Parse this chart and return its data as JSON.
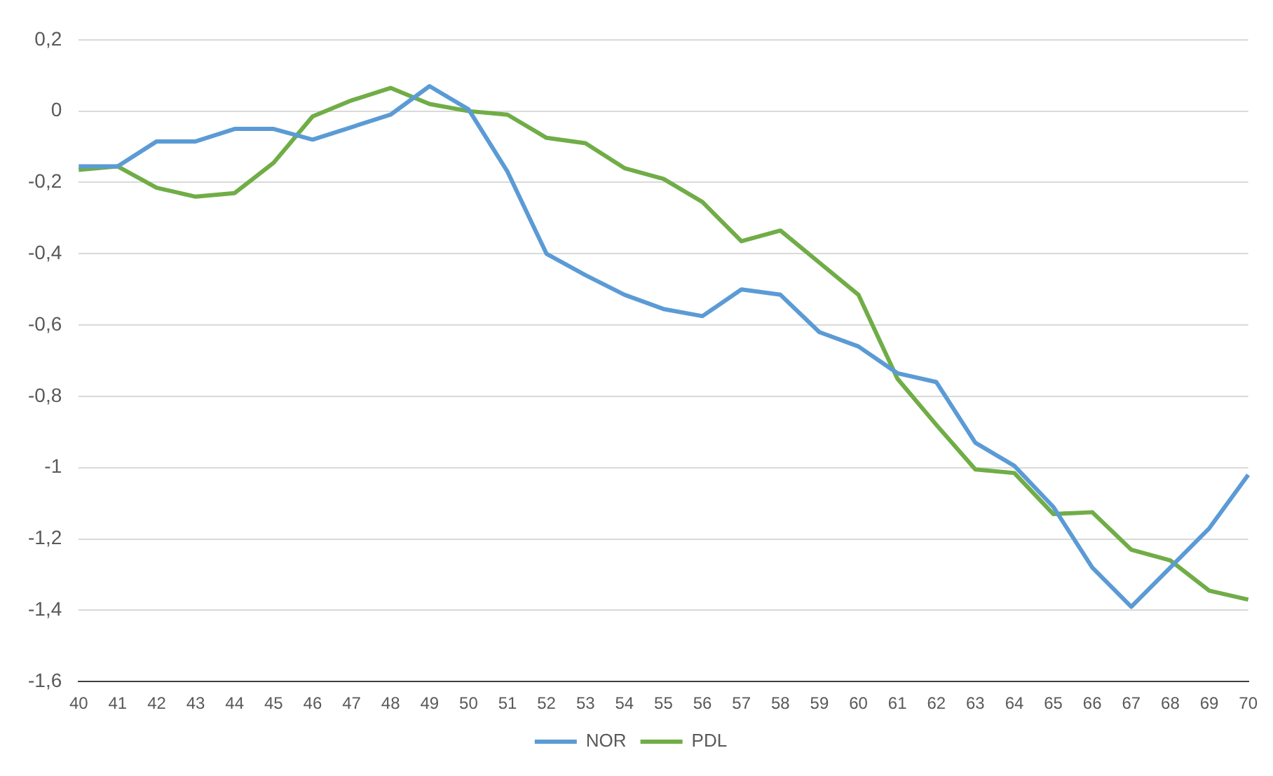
{
  "chart_data": {
    "type": "line",
    "categories": [
      "40",
      "41",
      "42",
      "43",
      "44",
      "45",
      "46",
      "47",
      "48",
      "49",
      "50",
      "51",
      "52",
      "53",
      "54",
      "55",
      "56",
      "57",
      "58",
      "59",
      "60",
      "61",
      "62",
      "63",
      "64",
      "65",
      "66",
      "67",
      "68",
      "69",
      "70"
    ],
    "series": [
      {
        "name": "NOR",
        "color": "#5b9bd5",
        "values": [
          -0.155,
          -0.155,
          -0.085,
          -0.085,
          -0.05,
          -0.05,
          -0.08,
          -0.045,
          -0.01,
          0.07,
          0.005,
          -0.17,
          -0.4,
          -0.46,
          -0.515,
          -0.555,
          -0.575,
          -0.5,
          -0.515,
          -0.62,
          -0.66,
          -0.735,
          -0.76,
          -0.93,
          -0.995,
          -1.11,
          -1.28,
          -1.39,
          -1.28,
          -1.17,
          -1.02
        ]
      },
      {
        "name": "PDL",
        "color": "#70ad47",
        "values": [
          -0.165,
          -0.155,
          -0.215,
          -0.24,
          -0.23,
          -0.145,
          -0.015,
          0.03,
          0.065,
          0.02,
          0,
          -0.01,
          -0.075,
          -0.09,
          -0.16,
          -0.19,
          -0.255,
          -0.365,
          -0.335,
          -0.425,
          -0.515,
          -0.75,
          -0.88,
          -1.005,
          -1.015,
          -1.13,
          -1.125,
          -1.23,
          -1.26,
          -1.345,
          -1.37
        ]
      }
    ],
    "ylim": [
      -1.6,
      0.2
    ],
    "yticks": [
      {
        "value": 0.2,
        "label": "0,2"
      },
      0,
      {
        "value": -0.2,
        "label": "-0,2"
      },
      {
        "value": -0.4,
        "label": "-0,4"
      },
      {
        "value": -0.6,
        "label": "-0,6"
      },
      {
        "value": -0.8,
        "label": "-0,8"
      },
      -1,
      {
        "value": -1.2,
        "label": "-1,2"
      },
      {
        "value": -1.4,
        "label": "-1,4"
      },
      {
        "value": -1.6,
        "label": "-1,6"
      }
    ],
    "grid": "y",
    "legend": "bottom",
    "marker": "none",
    "line_style": "solid"
  }
}
